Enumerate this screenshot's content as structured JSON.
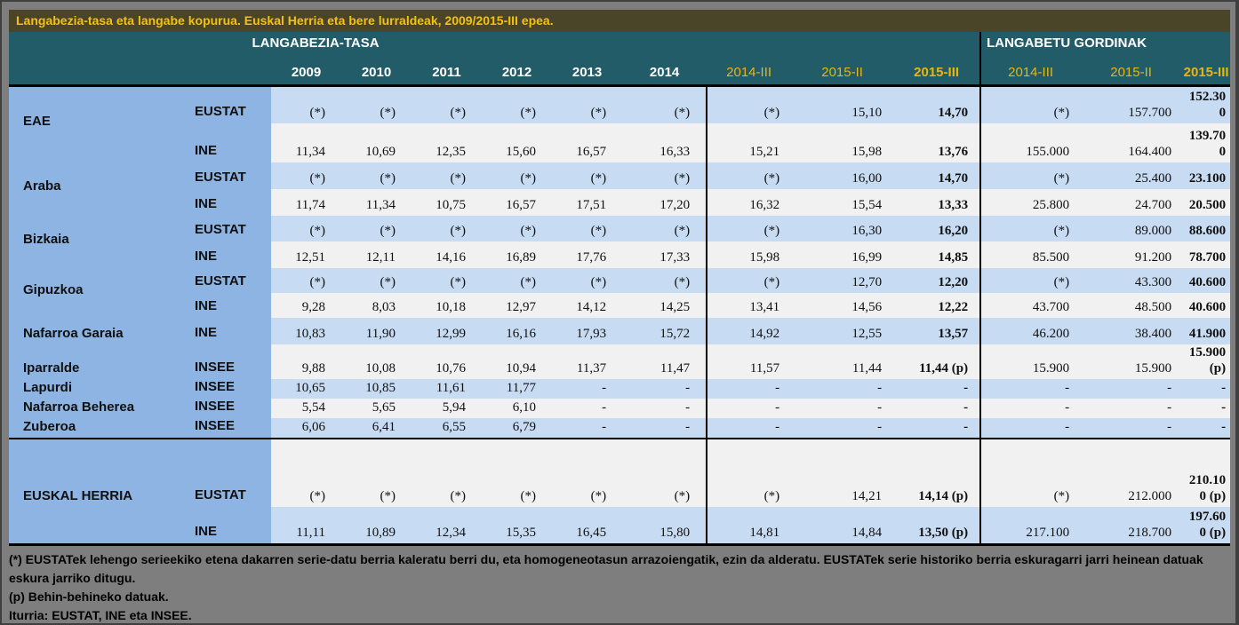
{
  "title": "Langabezia-tasa eta langabe kopurua. Euskal Herria eta bere lurraldeak, 2009/2015-III epea.",
  "table": {
    "section_left": "LANGABEZIA-TASA",
    "section_right": "LANGABETU GORDINAK",
    "rate_columns": [
      "2009",
      "2010",
      "2011",
      "2012",
      "2013",
      "2014",
      "2014-III",
      "2015-II",
      "2015-III"
    ],
    "gross_columns": [
      "2014-III",
      "2015-II",
      "2015-III"
    ],
    "rows": [
      {
        "region": "EAE",
        "source": "EUSTAT",
        "values": [
          "(*)",
          "(*)",
          "(*)",
          "(*)",
          "(*)",
          "(*)",
          "(*)",
          "15,10",
          "14,70",
          "(*)",
          "157.700",
          "152.300"
        ]
      },
      {
        "region": "",
        "source": "INE",
        "values": [
          "11,34",
          "10,69",
          "12,35",
          "15,60",
          "16,57",
          "16,33",
          "15,21",
          "15,98",
          "13,76",
          "155.000",
          "164.400",
          "139.700"
        ]
      },
      {
        "region": "Araba",
        "source": "EUSTAT",
        "values": [
          "(*)",
          "(*)",
          "(*)",
          "(*)",
          "(*)",
          "(*)",
          "(*)",
          "16,00",
          "14,70",
          "(*)",
          "25.400",
          "23.100"
        ]
      },
      {
        "region": "",
        "source": "INE",
        "values": [
          "11,74",
          "11,34",
          "10,75",
          "16,57",
          "17,51",
          "17,20",
          "16,32",
          "15,54",
          "13,33",
          "25.800",
          "24.700",
          "20.500"
        ]
      },
      {
        "region": "Bizkaia",
        "source": "EUSTAT",
        "values": [
          "(*)",
          "(*)",
          "(*)",
          "(*)",
          "(*)",
          "(*)",
          "(*)",
          "16,30",
          "16,20",
          "(*)",
          "89.000",
          "88.600"
        ]
      },
      {
        "region": "",
        "source": "INE",
        "values": [
          "12,51",
          "12,11",
          "14,16",
          "16,89",
          "17,76",
          "17,33",
          "15,98",
          "16,99",
          "14,85",
          "85.500",
          "91.200",
          "78.700"
        ]
      },
      {
        "region": "Gipuzkoa",
        "source": "EUSTAT",
        "values": [
          "(*)",
          "(*)",
          "(*)",
          "(*)",
          "(*)",
          "(*)",
          "(*)",
          "12,70",
          "12,20",
          "(*)",
          "43.300",
          "40.600"
        ]
      },
      {
        "region": "",
        "source": "INE",
        "values": [
          "9,28",
          "8,03",
          "10,18",
          "12,97",
          "14,12",
          "14,25",
          "13,41",
          "14,56",
          "12,22",
          "43.700",
          "48.500",
          "40.600"
        ]
      },
      {
        "region": "Nafarroa Garaia",
        "source": "INE",
        "values": [
          "10,83",
          "11,90",
          "12,99",
          "16,16",
          "17,93",
          "15,72",
          "14,92",
          "12,55",
          "13,57",
          "46.200",
          "38.400",
          "41.900"
        ]
      },
      {
        "region": "Iparralde",
        "source": "INSEE",
        "values": [
          "9,88",
          "10,08",
          "10,76",
          "10,94",
          "11,37",
          "11,47",
          "11,57",
          "11,44",
          "11,44 (p)",
          "15.900",
          "15.900",
          "15.900 (p)"
        ]
      },
      {
        "region": "Lapurdi",
        "source": "INSEE",
        "values": [
          "10,65",
          "10,85",
          "11,61",
          "11,77",
          "-",
          "-",
          "-",
          "-",
          "-",
          "-",
          "-",
          "-"
        ]
      },
      {
        "region": "Nafarroa Beherea",
        "source": "INSEE",
        "values": [
          "5,54",
          "5,65",
          "5,94",
          "6,10",
          "-",
          "-",
          "-",
          "-",
          "-",
          "-",
          "-",
          "-"
        ]
      },
      {
        "region": "Zuberoa",
        "source": "INSEE",
        "values": [
          "6,06",
          "6,41",
          "6,55",
          "6,79",
          "-",
          "-",
          "-",
          "-",
          "-",
          "-",
          "-",
          "-"
        ]
      },
      {
        "region": "EUSKAL HERRIA",
        "source": "EUSTAT",
        "values": [
          "(*)",
          "(*)",
          "(*)",
          "(*)",
          "(*)",
          "(*)",
          "(*)",
          "14,21",
          "14,14 (p)",
          "(*)",
          "212.000",
          "210.100 (p)"
        ]
      },
      {
        "region": "",
        "source": "INE",
        "values": [
          "11,11",
          "10,89",
          "12,34",
          "15,35",
          "16,45",
          "15,80",
          "14,81",
          "14,84",
          "13,50 (p)",
          "217.100",
          "218.700",
          "197.600 (p)"
        ]
      }
    ]
  },
  "notes": [
    "(*) EUSTATek lehengo serieekiko etena dakarren serie-datu berria kaleratu berri du, eta homogeneotasun arrazoiengatik, ezin da alderatu. EUSTATek serie historiko berria eskuragarri jarri heinean datuak eskura jarriko ditugu.",
    "(p) Behin-behineko datuak.",
    "Iturria: EUSTAT, INE eta INSEE."
  ],
  "colors": {
    "title_bar_bg": "#4a4429",
    "title_text": "#f2c211",
    "header_bg": "#235c69",
    "header_year_text": "#ffffff",
    "header_quarter_text": "#e9b510",
    "region_column_bg": "#8db4e2",
    "stripe_blue": "#c7dbf2",
    "stripe_gray": "#f1f1f1",
    "page_bg": "#7e7e7e"
  }
}
